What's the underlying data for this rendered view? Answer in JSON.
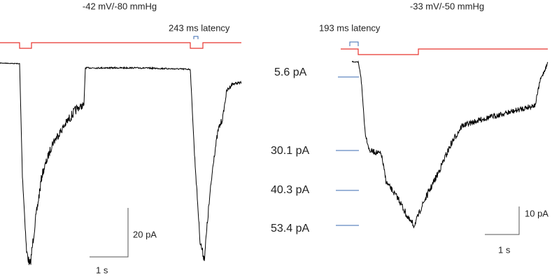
{
  "left_panel": {
    "title": "-42 mV/-80 mmHg",
    "latency": "243 ms latency",
    "scale_y": "20 pA",
    "scale_x": "1 s"
  },
  "right_panel": {
    "title": "-33 mV/-50 mmHg",
    "latency": "193 ms latency",
    "levels": [
      "5.6 pA",
      "30.1 pA",
      "40.3 pA",
      "53.4 pA"
    ],
    "scale_y": "10 pA",
    "scale_x": "1 s"
  }
}
